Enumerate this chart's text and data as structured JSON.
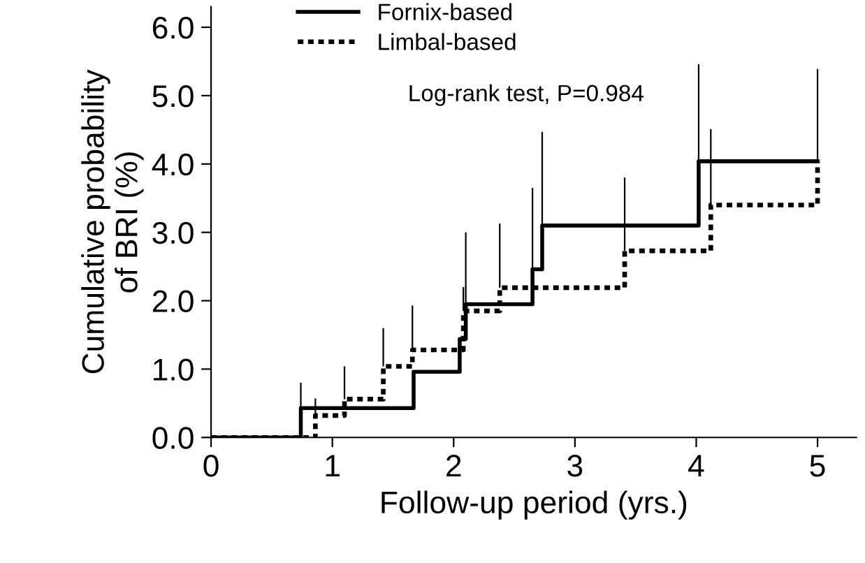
{
  "chart_data": {
    "type": "step",
    "xlabel": "Follow-up period (yrs.)",
    "ylabel": "Cumulative probability\nof BRI (%)",
    "xlim": [
      0,
      5.32
    ],
    "xticks": [
      0,
      1,
      2,
      3,
      4,
      5
    ],
    "ylim": [
      0,
      6.3
    ],
    "yticks": [
      {
        "value": 0,
        "label": "0.0"
      },
      {
        "value": 1,
        "label": "1.0"
      },
      {
        "value": 2,
        "label": "2.0"
      },
      {
        "value": 3,
        "label": "3.0"
      },
      {
        "value": 4,
        "label": "4.0"
      },
      {
        "value": 5,
        "label": "5.0"
      },
      {
        "value": 6,
        "label": "6.0"
      }
    ],
    "grid": false,
    "legend": "top",
    "marker": "none",
    "series": [
      {
        "name": "Fornix-based",
        "color": "#000000",
        "line_style": "solid",
        "x": [
          0,
          0.74,
          1.67,
          2.05,
          2.1,
          2.65,
          2.73,
          4.02,
          5.0
        ],
        "values": [
          0,
          0.43,
          0.96,
          1.44,
          1.95,
          2.46,
          3.1,
          4.04,
          4.04
        ],
        "errors": [
          null,
          [
            0.43,
            0.8
          ],
          null,
          null,
          [
            1.95,
            3.0
          ],
          [
            2.46,
            3.65
          ],
          [
            3.1,
            4.47
          ],
          [
            4.04,
            5.46
          ],
          [
            4.04,
            5.39
          ]
        ]
      },
      {
        "name": "Limbal-based",
        "color": "#000000",
        "line_style": "dotted",
        "x": [
          0,
          0.86,
          1.1,
          1.42,
          1.66,
          2.08,
          2.38,
          3.41,
          4.12,
          5.0
        ],
        "values": [
          0,
          0.32,
          0.56,
          1.04,
          1.28,
          1.85,
          2.19,
          2.73,
          3.4,
          4.04
        ],
        "errors": [
          null,
          [
            0.32,
            0.57
          ],
          [
            0.56,
            1.04
          ],
          [
            1.04,
            1.6
          ],
          [
            1.28,
            1.93
          ],
          [
            1.85,
            2.2
          ],
          [
            2.19,
            3.13
          ],
          [
            2.73,
            3.8
          ],
          [
            3.4,
            4.51
          ],
          null
        ]
      }
    ],
    "annotations": [
      "Log-rank test, P=0.984"
    ]
  }
}
